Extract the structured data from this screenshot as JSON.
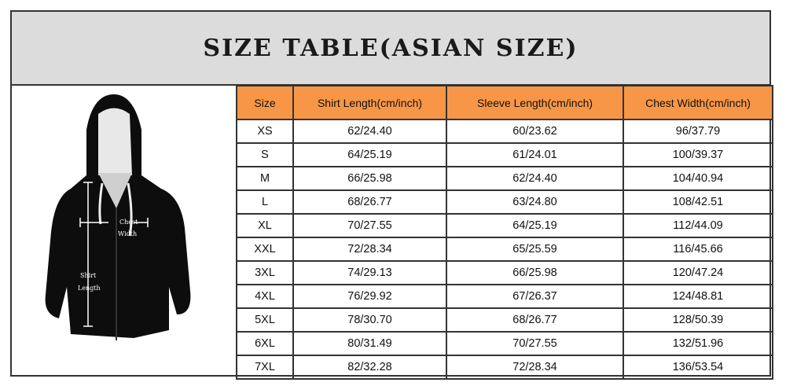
{
  "title": "SIZE TABLE(ASIAN SIZE)",
  "diagram": {
    "chest_label_1": "Chest",
    "chest_label_2": "Width",
    "length_label_1": "Shirt",
    "length_label_2": "Length"
  },
  "colors": {
    "header_bg": "#f79646",
    "title_bg": "#dcdcdc"
  },
  "table": {
    "headers": [
      "Size",
      "Shirt Length(cm/inch)",
      "Sleeve Length(cm/inch)",
      "Chest Width(cm/inch)"
    ],
    "rows": [
      [
        "XS",
        "62/24.40",
        "60/23.62",
        "96/37.79"
      ],
      [
        "S",
        "64/25.19",
        "61/24.01",
        "100/39.37"
      ],
      [
        "M",
        "66/25.98",
        "62/24.40",
        "104/40.94"
      ],
      [
        "L",
        "68/26.77",
        "63/24.80",
        "108/42.51"
      ],
      [
        "XL",
        "70/27.55",
        "64/25.19",
        "112/44.09"
      ],
      [
        "XXL",
        "72/28.34",
        "65/25.59",
        "116/45.66"
      ],
      [
        "3XL",
        "74/29.13",
        "66/25.98",
        "120/47.24"
      ],
      [
        "4XL",
        "76/29.92",
        "67/26.37",
        "124/48.81"
      ],
      [
        "5XL",
        "78/30.70",
        "68/26.77",
        "128/50.39"
      ],
      [
        "6XL",
        "80/31.49",
        "70/27.55",
        "132/51.96"
      ],
      [
        "7XL",
        "82/32.28",
        "72/28.34",
        "136/53.54"
      ]
    ]
  }
}
